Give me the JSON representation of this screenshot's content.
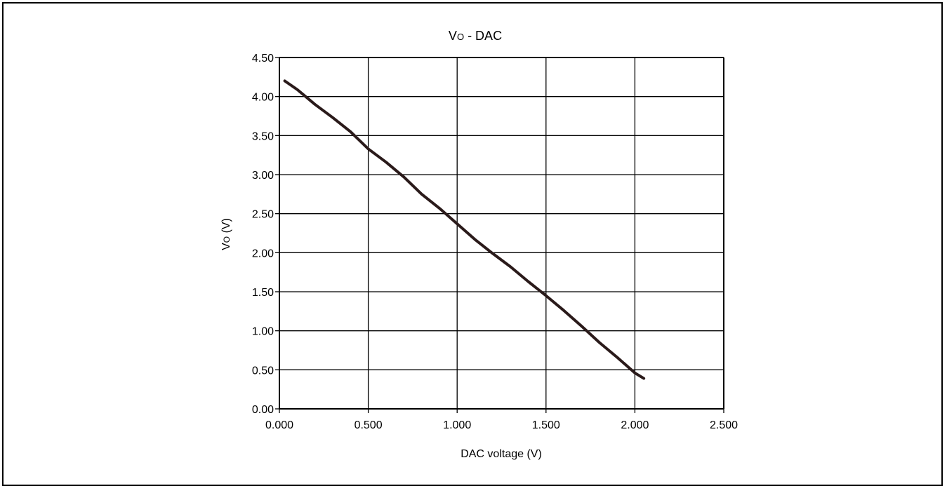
{
  "chart_data": {
    "type": "line",
    "title": {
      "main": "V",
      "sub": "O",
      "rest": " - DAC"
    },
    "xlabel": "DAC voltage (V)",
    "ylabel": {
      "main": "V",
      "sub": "O",
      "rest": " (V)"
    },
    "xlim": [
      0,
      2.5
    ],
    "ylim": [
      0,
      4.5
    ],
    "x_ticks": [
      "0.000",
      "0.500",
      "1.000",
      "1.500",
      "2.000",
      "2.500"
    ],
    "y_ticks": [
      "0.00",
      "0.50",
      "1.00",
      "1.50",
      "2.00",
      "2.50",
      "3.00",
      "3.50",
      "4.00",
      "4.50"
    ],
    "grid": true,
    "series": [
      {
        "line_color": "#2a1a1a",
        "x": [
          0.03,
          0.1,
          0.2,
          0.3,
          0.4,
          0.5,
          0.6,
          0.7,
          0.8,
          0.9,
          1.0,
          1.1,
          1.2,
          1.3,
          1.4,
          1.5,
          1.6,
          1.7,
          1.8,
          1.9,
          2.0,
          2.05
        ],
        "y": [
          4.2,
          4.09,
          3.9,
          3.73,
          3.55,
          3.33,
          3.16,
          2.97,
          2.75,
          2.57,
          2.37,
          2.17,
          1.99,
          1.82,
          1.63,
          1.45,
          1.26,
          1.06,
          0.85,
          0.66,
          0.46,
          0.39
        ]
      }
    ]
  }
}
